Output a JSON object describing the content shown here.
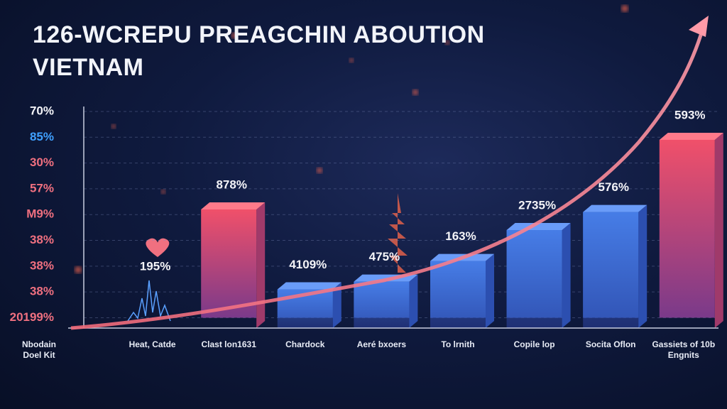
{
  "chart_data": {
    "type": "bar",
    "title": "126-WCREPU PREAGCHIN ABOUTION VIETNAM",
    "categories": [
      "Nbodain Doel Kit",
      "Heat, Catde",
      "Clast lon1631",
      "Chardock",
      "Aeré bxoers",
      "To lrnith",
      "Copile lop",
      "Socita Oflon",
      "Gassiets of 10b Engnits"
    ],
    "values": [
      null,
      null,
      4.2,
      1.1,
      1.4,
      2.2,
      3.4,
      4.1,
      6.9
    ],
    "bar_labels": [
      null,
      "195%",
      "878%",
      "4109%",
      "475%",
      "163%",
      "2735%",
      "576%",
      "593%"
    ],
    "color": "#3a6fd8",
    "ylim": [
      -0.4,
      8
    ],
    "yticks": [
      {
        "value": 0,
        "label": "20199%"
      },
      {
        "value": 1,
        "label": "38%"
      },
      {
        "value": 2,
        "label": "38%"
      },
      {
        "value": 3,
        "label": "38%"
      },
      {
        "value": 4,
        "label": "M9%"
      },
      {
        "value": 5,
        "label": "57%"
      },
      {
        "value": 6,
        "label": "30%"
      },
      {
        "value": 7,
        "label": "85%"
      },
      {
        "value": 8,
        "label": "70%"
      }
    ],
    "grid": true
  }
}
